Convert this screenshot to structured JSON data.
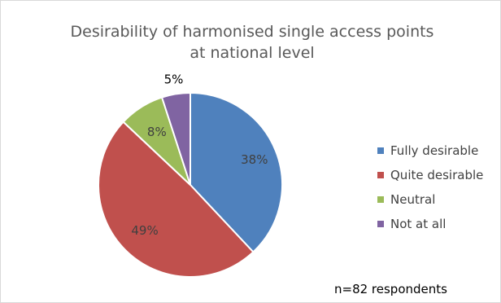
{
  "chart_data": {
    "type": "pie",
    "title": "Desirability of harmonised single access points at national level",
    "title_lines": [
      "Desirability of harmonised single access points",
      "at national level"
    ],
    "categories": [
      "Fully desirable",
      "Quite desirable",
      "Neutral",
      "Not at all"
    ],
    "values": [
      38,
      49,
      8,
      5
    ],
    "labels": [
      "38%",
      "49%",
      "8%",
      "5%"
    ],
    "colors": [
      "#4f81bd",
      "#c0504d",
      "#9bbb59",
      "#8064a2"
    ],
    "label_colors": [
      "#404040",
      "#404040",
      "#404040",
      "#000000"
    ],
    "legend_position": "right",
    "start_angle": "top, clockwise"
  },
  "note": "n=82 respondents"
}
